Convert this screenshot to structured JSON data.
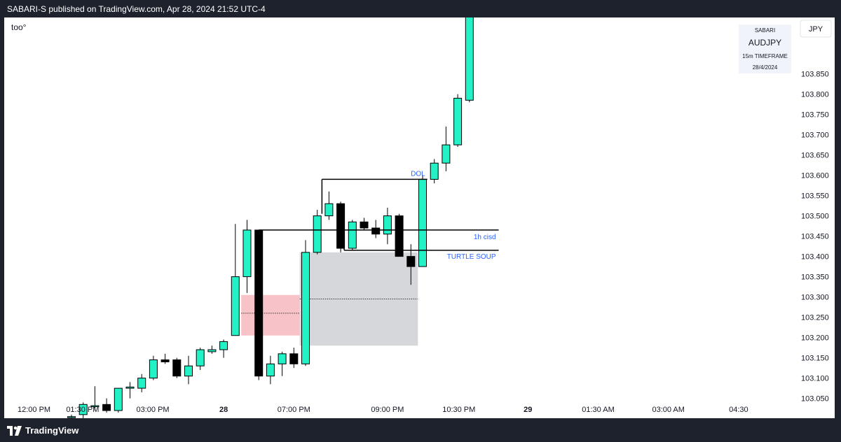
{
  "header": {
    "publish_line": "SABARI-S published on TradingView.com, Apr 28, 2024 21:52 UTC-4"
  },
  "footer": {
    "brand": "TradingView"
  },
  "legend": {
    "label": "too°"
  },
  "info_box": {
    "author": "SABARI",
    "symbol": "AUDJPY",
    "timeframe": "15m TIMEFRAME",
    "date": "28/4/2024"
  },
  "currency": "JPY",
  "chart_data": {
    "type": "candlestick",
    "title": "",
    "symbol": "AUDJPY",
    "ylim": [
      102.98,
      104.06
    ],
    "y_ticks": [
      "103.850",
      "103.800",
      "103.750",
      "103.700",
      "103.650",
      "103.600",
      "103.550",
      "103.500",
      "103.450",
      "103.400",
      "103.350",
      "103.300",
      "103.250",
      "103.200",
      "103.150",
      "103.100",
      "103.050"
    ],
    "x_ticks": [
      {
        "label": "12:00 PM",
        "bar": -3.2
      },
      {
        "label": "01:30 PM",
        "bar": 0.95
      },
      {
        "label": "03:00 PM",
        "bar": 6.95
      },
      {
        "label": "28",
        "bar": 13.0
      },
      {
        "label": "07:00 PM",
        "bar": 19.0
      },
      {
        "label": "09:00 PM",
        "bar": 27.0
      },
      {
        "label": "10:30 PM",
        "bar": 33.1
      },
      {
        "label": "29",
        "bar": 39.0
      },
      {
        "label": "01:30 AM",
        "bar": 45.0
      },
      {
        "label": "03:00 AM",
        "bar": 51.0
      },
      {
        "label": "04:30",
        "bar": 57.0
      }
    ],
    "candles": [
      {
        "o": 103.005,
        "h": 103.01,
        "l": 103.0,
        "c": 103.005
      },
      {
        "o": 103.01,
        "h": 103.04,
        "l": 103.0,
        "c": 103.035
      },
      {
        "o": 103.03,
        "h": 103.08,
        "l": 103.02,
        "c": 103.032
      },
      {
        "o": 103.035,
        "h": 103.05,
        "l": 103.015,
        "c": 103.02
      },
      {
        "o": 103.02,
        "h": 103.075,
        "l": 103.015,
        "c": 103.075
      },
      {
        "o": 103.075,
        "h": 103.09,
        "l": 103.05,
        "c": 103.078
      },
      {
        "o": 103.075,
        "h": 103.11,
        "l": 103.065,
        "c": 103.1
      },
      {
        "o": 103.1,
        "h": 103.155,
        "l": 103.095,
        "c": 103.145
      },
      {
        "o": 103.145,
        "h": 103.16,
        "l": 103.135,
        "c": 103.14
      },
      {
        "o": 103.145,
        "h": 103.15,
        "l": 103.1,
        "c": 103.105
      },
      {
        "o": 103.105,
        "h": 103.155,
        "l": 103.085,
        "c": 103.13
      },
      {
        "o": 103.13,
        "h": 103.175,
        "l": 103.12,
        "c": 103.17
      },
      {
        "o": 103.165,
        "h": 103.18,
        "l": 103.16,
        "c": 103.17
      },
      {
        "o": 103.17,
        "h": 103.195,
        "l": 103.15,
        "c": 103.19
      },
      {
        "o": 103.205,
        "h": 103.48,
        "l": 103.205,
        "c": 103.35
      },
      {
        "o": 103.35,
        "h": 103.49,
        "l": 103.31,
        "c": 103.465
      },
      {
        "o": 103.465,
        "h": 103.465,
        "l": 103.095,
        "c": 103.105
      },
      {
        "o": 103.105,
        "h": 103.155,
        "l": 103.085,
        "c": 103.135
      },
      {
        "o": 103.135,
        "h": 103.165,
        "l": 103.105,
        "c": 103.16
      },
      {
        "o": 103.16,
        "h": 103.175,
        "l": 103.125,
        "c": 103.135
      },
      {
        "o": 103.135,
        "h": 103.44,
        "l": 103.13,
        "c": 103.41
      },
      {
        "o": 103.41,
        "h": 103.515,
        "l": 103.405,
        "c": 103.5
      },
      {
        "o": 103.5,
        "h": 103.56,
        "l": 103.49,
        "c": 103.53
      },
      {
        "o": 103.53,
        "h": 103.535,
        "l": 103.41,
        "c": 103.42
      },
      {
        "o": 103.42,
        "h": 103.49,
        "l": 103.415,
        "c": 103.485
      },
      {
        "o": 103.485,
        "h": 103.495,
        "l": 103.465,
        "c": 103.47
      },
      {
        "o": 103.47,
        "h": 103.49,
        "l": 103.445,
        "c": 103.455
      },
      {
        "o": 103.455,
        "h": 103.52,
        "l": 103.43,
        "c": 103.5
      },
      {
        "o": 103.5,
        "h": 103.505,
        "l": 103.4,
        "c": 103.4
      },
      {
        "o": 103.4,
        "h": 103.43,
        "l": 103.33,
        "c": 103.375
      },
      {
        "o": 103.375,
        "h": 103.6,
        "l": 103.375,
        "c": 103.59
      },
      {
        "o": 103.59,
        "h": 103.64,
        "l": 103.58,
        "c": 103.63
      },
      {
        "o": 103.63,
        "h": 103.72,
        "l": 103.61,
        "c": 103.675
      },
      {
        "o": 103.675,
        "h": 103.8,
        "l": 103.67,
        "c": 103.79
      },
      {
        "o": 103.785,
        "h": 104.06,
        "l": 103.78,
        "c": 104.06
      }
    ],
    "annotations": [
      {
        "type": "line",
        "label": "DOL",
        "y": 103.59,
        "from_bar": 21.4,
        "to_bar": 30.4
      },
      {
        "type": "line",
        "label": "1h cisd",
        "y": 103.465,
        "from_bar": 16,
        "to_bar": 36.5
      },
      {
        "type": "line",
        "label": "TURTLE SOUP",
        "y": 103.415,
        "from_bar": 23.3,
        "to_bar": 36.5
      },
      {
        "type": "box",
        "label": "",
        "color": "#f8c3c8",
        "y_top": 103.305,
        "y_bottom": 103.205,
        "from_bar": 14.5,
        "to_bar": 19.5
      },
      {
        "type": "box",
        "label": "",
        "color": "#d6d7da",
        "y_top": 103.41,
        "y_bottom": 103.18,
        "from_bar": 19.5,
        "to_bar": 29.6
      },
      {
        "type": "midline",
        "y": 103.26,
        "from_bar": 14.5,
        "to_bar": 19.5
      },
      {
        "type": "midline",
        "y": 103.295,
        "from_bar": 19.5,
        "to_bar": 29.6
      }
    ],
    "colors": {
      "up": "#22f2c6",
      "down": "#000000",
      "outline": "#000000"
    }
  }
}
